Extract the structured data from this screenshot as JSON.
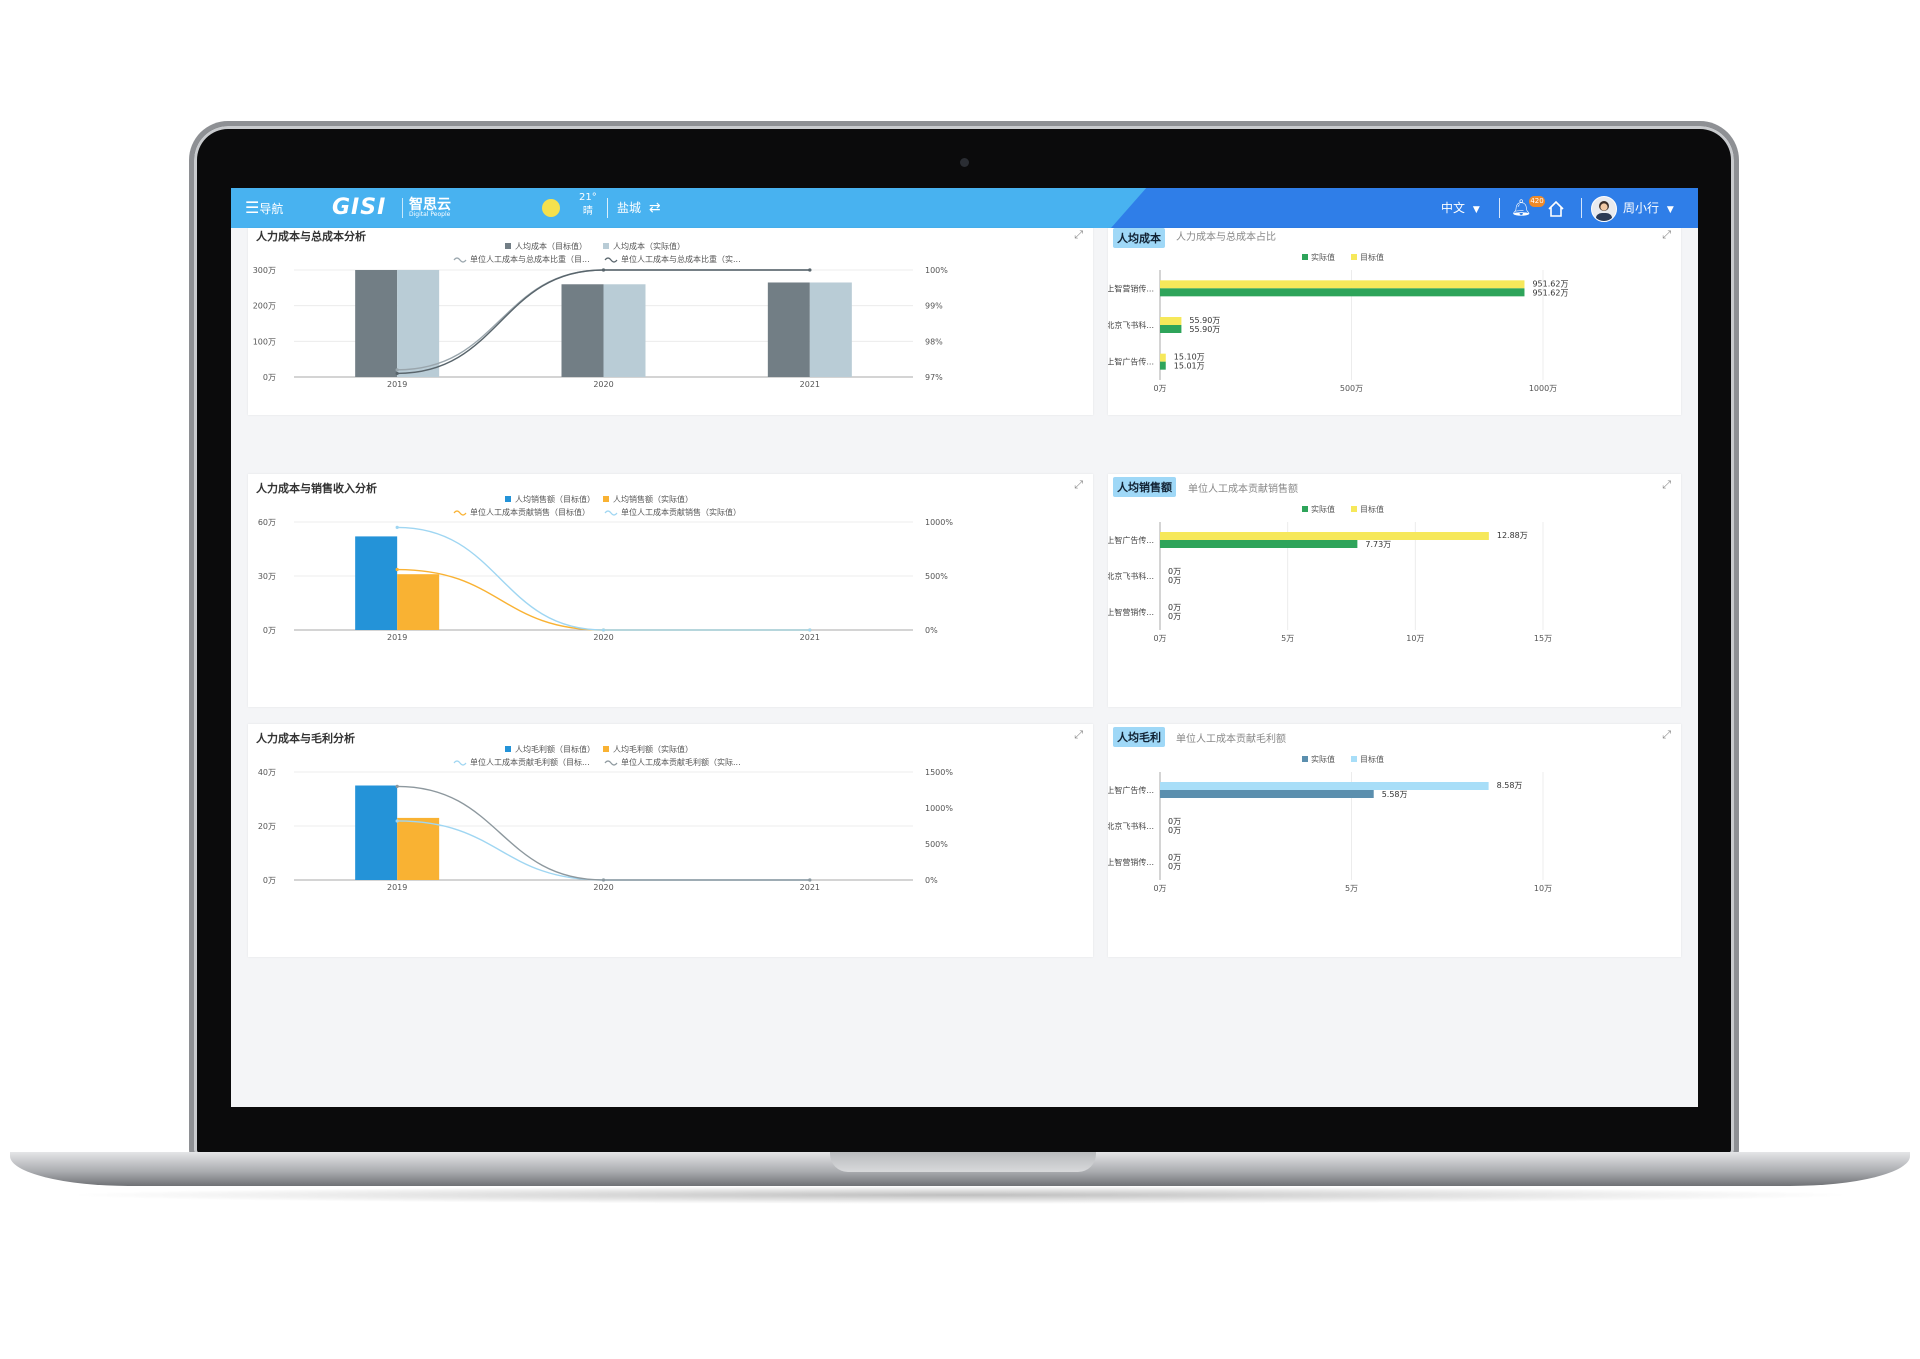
{
  "topbar": {
    "nav_label": "导航",
    "logo_text": "GISI",
    "brand_text": "智思云",
    "brand_sub": "Digital People",
    "temperature": "21°",
    "weather": "晴",
    "city": "盐城",
    "language": "中文",
    "notification_count": "420",
    "username": "周小行"
  },
  "panels": {
    "cost_total": {
      "title": "人力成本与总成本分析"
    },
    "cost_sales": {
      "title": "人力成本与销售收入分析"
    },
    "cost_profit": {
      "title": "人力成本与毛利分析"
    },
    "avg_cost": {
      "badge": "人均成本",
      "subtitle": "人力成本与总成本占比"
    },
    "avg_sales": {
      "badge": "人均销售额",
      "subtitle": "单位人工成本贡献销售额"
    },
    "avg_profit": {
      "badge": "人均毛利",
      "subtitle": "单位人工成本贡献毛利额"
    }
  },
  "colors": {
    "gray_dark": "#727e85",
    "gray_light": "#b9ccd6",
    "blue": "#2493d8",
    "orange": "#f9b233",
    "yellow": "#f6e85a",
    "green": "#2ea45a",
    "steel": "#5b8fae",
    "sky": "#a8def8"
  },
  "chart_data": [
    {
      "type": "bar",
      "title": "人力成本与总成本分析",
      "categories": [
        "2019",
        "2020",
        "2021"
      ],
      "series": [
        {
          "name": "人均成本（目标值）",
          "kind": "bar",
          "axis": "left",
          "values": [
            300,
            260,
            265
          ]
        },
        {
          "name": "人均成本（实际值）",
          "kind": "bar",
          "axis": "left",
          "values": [
            300,
            260,
            265
          ]
        },
        {
          "name": "单位人工成本与总成本比重（目...",
          "kind": "line",
          "axis": "right",
          "values": [
            97.2,
            100,
            100
          ]
        },
        {
          "name": "单位人工成本与总成本比重（实...",
          "kind": "line",
          "axis": "right",
          "values": [
            97.1,
            100,
            100
          ]
        }
      ],
      "y_left_ticks": [
        "0万",
        "100万",
        "200万",
        "300万"
      ],
      "y_left_range": [
        0,
        300
      ],
      "y_right_ticks": [
        "97%",
        "98%",
        "99%",
        "100%"
      ],
      "y_right_range": [
        97,
        100
      ]
    },
    {
      "type": "bar",
      "title": "人力成本与销售收入分析",
      "categories": [
        "2019",
        "2020",
        "2021"
      ],
      "series": [
        {
          "name": "人均销售额（目标值）",
          "kind": "bar",
          "axis": "left",
          "values": [
            52,
            0,
            0
          ]
        },
        {
          "name": "人均销售额（实际值）",
          "kind": "bar",
          "axis": "left",
          "values": [
            31,
            0,
            0
          ]
        },
        {
          "name": "单位人工成本贡献销售（目标值）",
          "kind": "line",
          "axis": "right",
          "values": [
            560,
            0,
            0
          ]
        },
        {
          "name": "单位人工成本贡献销售（实际值）",
          "kind": "line",
          "axis": "right",
          "values": [
            950,
            0,
            0
          ]
        }
      ],
      "y_left_ticks": [
        "0万",
        "30万",
        "60万"
      ],
      "y_left_range": [
        0,
        60
      ],
      "y_right_ticks": [
        "0%",
        "500%",
        "1000%"
      ],
      "y_right_range": [
        0,
        1000
      ]
    },
    {
      "type": "bar",
      "title": "人力成本与毛利分析",
      "categories": [
        "2019",
        "2020",
        "2021"
      ],
      "series": [
        {
          "name": "人均毛利额（目标值）",
          "kind": "bar",
          "axis": "left",
          "values": [
            35,
            0,
            0
          ]
        },
        {
          "name": "人均毛利额（实际值）",
          "kind": "bar",
          "axis": "left",
          "values": [
            23,
            0,
            0
          ]
        },
        {
          "name": "单位人工成本贡献毛利额（目标...",
          "kind": "line",
          "axis": "right",
          "values": [
            820,
            0,
            0
          ]
        },
        {
          "name": "单位人工成本贡献毛利额（实际...",
          "kind": "line",
          "axis": "right",
          "values": [
            1300,
            0,
            0
          ]
        }
      ],
      "y_left_ticks": [
        "0万",
        "20万",
        "40万"
      ],
      "y_left_range": [
        0,
        40
      ],
      "y_right_ticks": [
        "0%",
        "500%",
        "1000%",
        "1500%"
      ],
      "y_right_range": [
        0,
        1500
      ]
    },
    {
      "type": "bar",
      "orientation": "horizontal",
      "categories": [
        "上智营销传...",
        "北京飞书科...",
        "上智广告传..."
      ],
      "series": [
        {
          "name": "目标值",
          "values": [
            951.62,
            55.9,
            15.1
          ],
          "labels": [
            "951.62万",
            "55.90万",
            "15.10万"
          ]
        },
        {
          "name": "实际值",
          "values": [
            951.62,
            55.9,
            15.01
          ],
          "labels": [
            "951.62万",
            "55.90万",
            "15.01万"
          ]
        }
      ],
      "legend": [
        "实际值",
        "目标值"
      ],
      "x_ticks": [
        "0万",
        "500万",
        "1000万"
      ],
      "x_range": [
        0,
        1000
      ]
    },
    {
      "type": "bar",
      "orientation": "horizontal",
      "categories": [
        "上智广告传...",
        "北京飞书科...",
        "上智营销传..."
      ],
      "series": [
        {
          "name": "目标值",
          "values": [
            12.88,
            0,
            0
          ],
          "labels": [
            "12.88万",
            "0万",
            "0万"
          ]
        },
        {
          "name": "实际值",
          "values": [
            7.73,
            0,
            0
          ],
          "labels": [
            "7.73万",
            "0万",
            "0万"
          ]
        }
      ],
      "legend": [
        "实际值",
        "目标值"
      ],
      "x_ticks": [
        "0万",
        "5万",
        "10万",
        "15万"
      ],
      "x_range": [
        0,
        15
      ]
    },
    {
      "type": "bar",
      "orientation": "horizontal",
      "categories": [
        "上智广告传...",
        "北京飞书科...",
        "上智营销传..."
      ],
      "series": [
        {
          "name": "目标值",
          "values": [
            8.58,
            0,
            0
          ],
          "labels": [
            "8.58万",
            "0万",
            "0万"
          ]
        },
        {
          "name": "实际值",
          "values": [
            5.58,
            0,
            0
          ],
          "labels": [
            "5.58万",
            "0万",
            "0万"
          ]
        }
      ],
      "legend": [
        "实际值",
        "目标值"
      ],
      "x_ticks": [
        "0万",
        "5万",
        "10万"
      ],
      "x_range": [
        0,
        10
      ]
    }
  ]
}
